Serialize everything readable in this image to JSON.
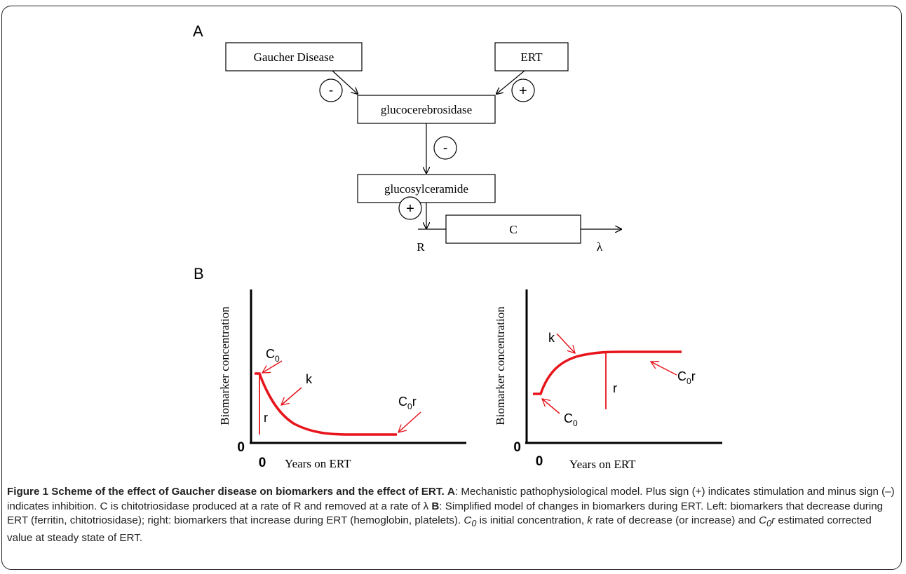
{
  "panel_a": {
    "label": "A",
    "boxes": {
      "gaucher": "Gaucher Disease",
      "ert": "ERT",
      "gcase": "glucocerebrosidase",
      "glucosylceramide": "glucosylceramide",
      "c": "C"
    },
    "signs": {
      "gaucher_to_gcase": "-",
      "ert_to_gcase": "+",
      "gcase_to_glc": "-",
      "glc_to_c": "+"
    },
    "labels": {
      "r": "R",
      "lambda": "λ"
    }
  },
  "panel_b": {
    "label": "B",
    "left_plot": {
      "ylabel": "Biomarker concentration",
      "xlabel": "Years on ERT",
      "origin_y": "0",
      "origin_x": "0",
      "c0": "C",
      "c0_sub": "0",
      "k": "k",
      "r": "r",
      "c0r": "C",
      "c0r_sub": "0",
      "c0r_tail": "r"
    },
    "right_plot": {
      "ylabel": "Biomarker concentration",
      "xlabel": "Years on ERT",
      "origin_y": "0",
      "origin_x": "0",
      "c0": "C",
      "c0_sub": "0",
      "k": "k",
      "r": "r",
      "c0r": "C",
      "c0r_sub": "0",
      "c0r_tail": "r"
    }
  },
  "caption": {
    "title": "Figure 1 Scheme of the effect of Gaucher disease on biomarkers and the effect of ERT.",
    "a_tag": "A",
    "a_text": ": Mechanistic pathophysiological model. Plus sign (+) indicates stimulation and minus sign (–) indicates inhibition. C is chitotriosidase produced at a rate of R and removed at a rate of λ ",
    "b_tag": "B",
    "b_text": ": Simplified model of changes in biomarkers during ERT. Left: biomarkers that decrease during ERT (ferritin, chitotriosidase); right: biomarkers that increase during ERT (hemoglobin, platelets). ",
    "c0": "C",
    "c0_sub": "0",
    "t1": " is initial concentration, ",
    "k": "k",
    "t2": " rate of decrease (or increase) and ",
    "c0r": "C",
    "c0r_sub": "0",
    "c0r_tail": "r",
    "t3": " estimated corrected value at steady state of ERT."
  },
  "colors": {
    "curve": "#e8141c",
    "ink": "#000000"
  }
}
